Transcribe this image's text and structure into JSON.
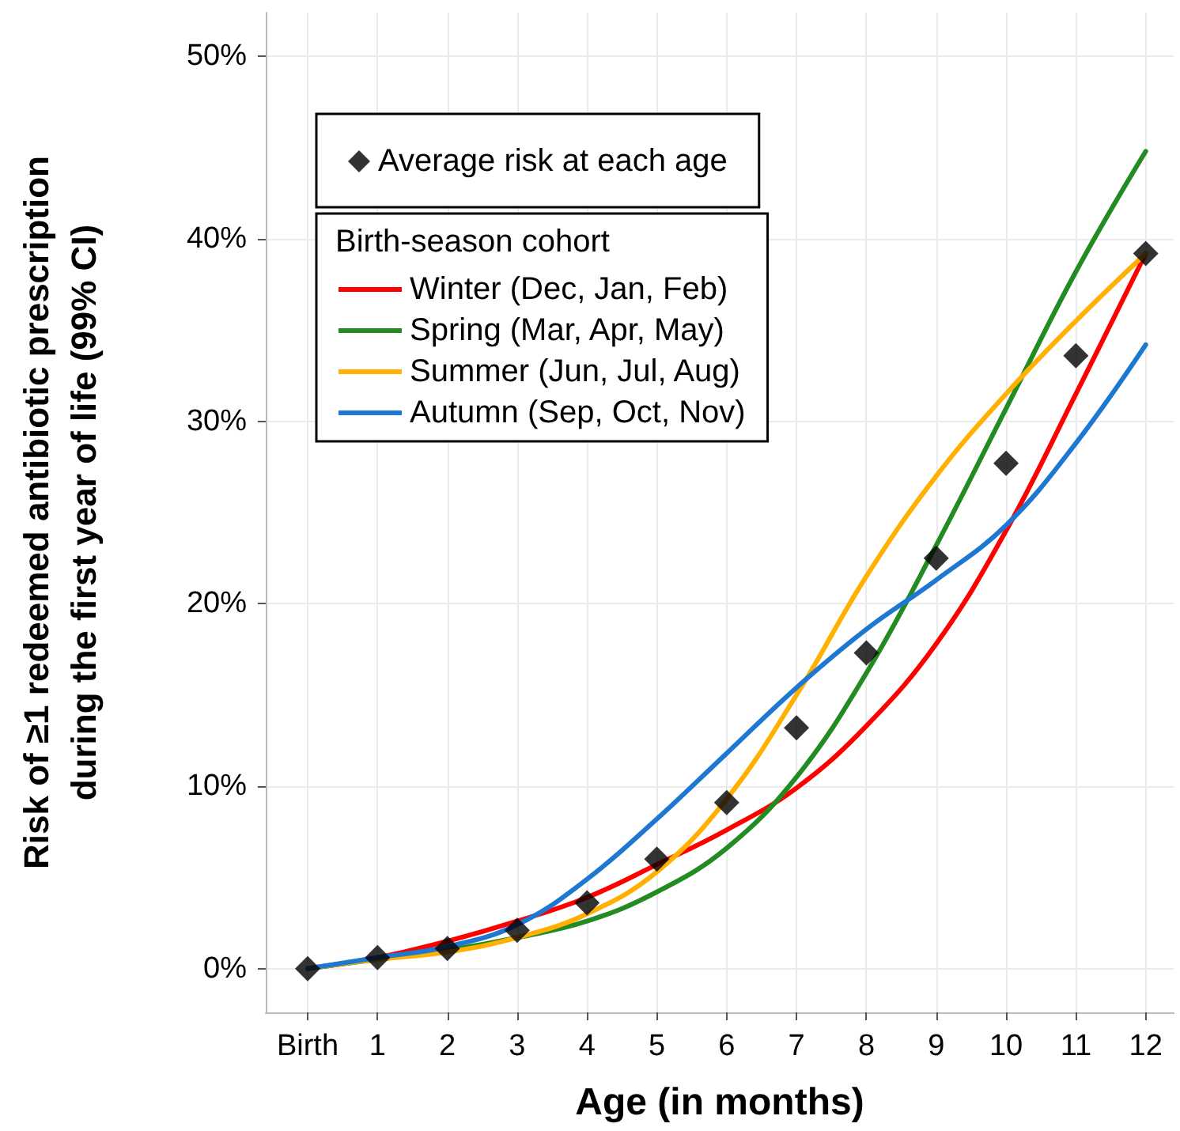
{
  "chart_data": {
    "type": "line",
    "xlabel": "Age (in months)",
    "ylabel": "Risk of ≥1 redeemed antibiotic prescription\nduring the first year of life (99% CI)",
    "legend_title": "Birth-season cohort",
    "legend": "top left",
    "grid": true,
    "marker": "none",
    "line_style": "solid",
    "xlim": [
      -0.6,
      12.4
    ],
    "xticks": [
      {
        "value": 0,
        "label": "Birth"
      },
      1,
      2,
      3,
      4,
      5,
      6,
      7,
      8,
      9,
      10,
      11,
      12
    ],
    "ylim": [
      -2.4,
      52.4
    ],
    "yticks": [
      {
        "value": 0,
        "label": "0%"
      },
      {
        "value": 10,
        "label": "10%"
      },
      {
        "value": 20,
        "label": "20%"
      },
      {
        "value": 30,
        "label": "30%"
      },
      {
        "value": 40,
        "label": "40%"
      },
      {
        "value": 50,
        "label": "50%"
      }
    ],
    "x": [
      0,
      1,
      2,
      3,
      4,
      5,
      6,
      7,
      8,
      9,
      10,
      11,
      12
    ],
    "series": [
      {
        "name": "Winter (Dec, Jan, Feb)",
        "color": "#ff0000",
        "values": [
          0,
          0.6,
          1.5,
          2.6,
          3.9,
          5.7,
          7.6,
          9.9,
          13.3,
          17.8,
          24,
          31.5,
          39.2
        ]
      },
      {
        "name": "Spring (Mar, Apr, May)",
        "color": "#228b22",
        "values": [
          0,
          0.5,
          1.0,
          1.7,
          2.6,
          4.2,
          6.6,
          10.5,
          16.2,
          23.2,
          30.7,
          38.2,
          44.8
        ]
      },
      {
        "name": "Summer (Jun, Jul, Aug)",
        "color": "#ffb000",
        "values": [
          0,
          0.5,
          0.9,
          1.7,
          3.0,
          5.3,
          9.3,
          15.0,
          21.5,
          27.0,
          31.5,
          35.5,
          39.2
        ]
      },
      {
        "name": "Autumn (Sep, Oct, Nov)",
        "color": "#1e78d2",
        "values": [
          0,
          0.6,
          1.2,
          2.4,
          4.9,
          8.2,
          11.8,
          15.4,
          18.6,
          21.3,
          24.3,
          28.8,
          34.2
        ]
      },
      {
        "name": "Average risk at each age",
        "type": "scatter",
        "marker": "diamond",
        "color": "#000000",
        "values": [
          0,
          0.6,
          1.1,
          2.1,
          3.6,
          6.0,
          9.1,
          13.2,
          17.3,
          22.5,
          27.7,
          33.6,
          39.2
        ]
      }
    ]
  }
}
